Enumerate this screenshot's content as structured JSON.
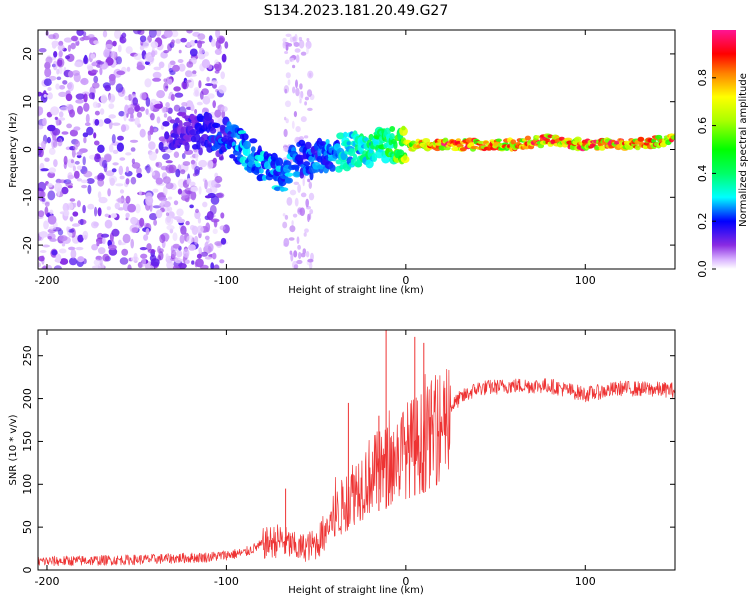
{
  "title": "S134.2023.181.20.49.G27",
  "chart_data": [
    {
      "type": "heatmap",
      "name": "spectrogram",
      "xlabel": "Height of straight line (km)",
      "ylabel": "Frequency (Hz)",
      "xlim": [
        -205,
        150
      ],
      "ylim": [
        -25,
        25
      ],
      "xticks": [
        -200,
        -100,
        0,
        100
      ],
      "yticks": [
        -20,
        -10,
        0,
        10,
        20
      ],
      "colorbar": {
        "label": "Normalized spectral amplitude",
        "range": [
          0,
          1
        ],
        "ticks": [
          0.0,
          0.2,
          0.4,
          0.6,
          0.8
        ],
        "tick_labels": [
          "0.0",
          "0.2",
          "0.4",
          "0.6",
          "0.8"
        ],
        "colormap": "gist_ncar-like (white-purple-blue-cyan-green-yellow-red-magenta)"
      },
      "ridge": {
        "description": "dominant frequency track vs height",
        "x": [
          -120,
          -100,
          -90,
          -80,
          -70,
          -60,
          -50,
          -40,
          -30,
          -20,
          -10,
          0,
          20,
          40,
          60,
          80,
          100,
          120,
          150
        ],
        "freq": [
          4,
          3,
          0,
          -3,
          -6,
          -2,
          -2,
          -1,
          0,
          0,
          1,
          1,
          1,
          1,
          1,
          2,
          1,
          1,
          2
        ],
        "amplitude": [
          0.15,
          0.25,
          0.3,
          0.3,
          0.3,
          0.25,
          0.25,
          0.3,
          0.35,
          0.4,
          0.5,
          0.7,
          0.9,
          0.85,
          0.85,
          0.9,
          0.9,
          0.9,
          0.85
        ]
      }
    },
    {
      "type": "line",
      "name": "snr",
      "xlabel": "Height of straight line (km)",
      "ylabel": "SNR (10 * v/v)",
      "xlim": [
        -205,
        150
      ],
      "ylim": [
        0,
        280
      ],
      "xticks": [
        -200,
        -100,
        0,
        100
      ],
      "yticks": [
        0,
        50,
        100,
        150,
        200,
        250
      ],
      "color": "#ee3333",
      "envelope": {
        "x": [
          -205,
          -150,
          -110,
          -90,
          -80,
          -70,
          -60,
          -50,
          -40,
          -30,
          -20,
          -10,
          0,
          10,
          20,
          25,
          30,
          40,
          60,
          80,
          100,
          120,
          150
        ],
        "y": [
          10,
          12,
          15,
          20,
          30,
          35,
          25,
          30,
          60,
          90,
          110,
          120,
          140,
          150,
          170,
          190,
          200,
          212,
          215,
          215,
          205,
          212,
          210
        ]
      },
      "spikes": [
        {
          "x": -67,
          "y": 95
        },
        {
          "x": -32,
          "y": 195
        },
        {
          "x": -15,
          "y": 180
        },
        {
          "x": -11,
          "y": 280
        },
        {
          "x": 5,
          "y": 272
        },
        {
          "x": 10,
          "y": 265
        }
      ]
    }
  ]
}
